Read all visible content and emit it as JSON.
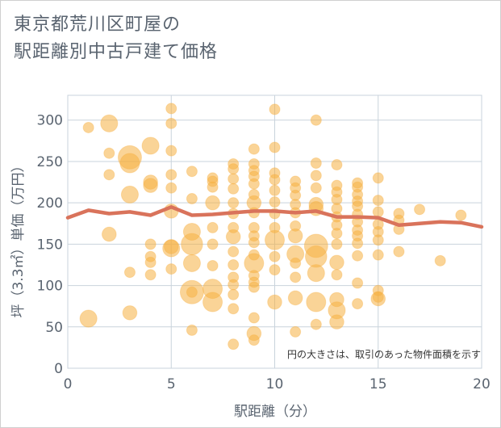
{
  "chart_data": {
    "type": "scatter",
    "title": "東京都荒川区町屋の\n駅距離別中古戸建て価格",
    "xlabel": "駅距離（分）",
    "ylabel": "坪（3.3㎡）単価（万円）",
    "xlim": [
      0,
      20
    ],
    "ylim": [
      0,
      330
    ],
    "x_ticks": [
      0,
      5,
      10,
      15,
      20
    ],
    "y_ticks": [
      0,
      50,
      100,
      150,
      200,
      250,
      300
    ],
    "grid": true,
    "note": "円の大きさは、取引のあった物件面積を示す",
    "colors": {
      "bubble": "#f5b041",
      "line": "#d9735b",
      "grid": "#c9d3dc"
    },
    "points": [
      {
        "x": 1,
        "y": 291,
        "s": 1
      },
      {
        "x": 1,
        "y": 60,
        "s": 3
      },
      {
        "x": 2,
        "y": 296,
        "s": 3
      },
      {
        "x": 2,
        "y": 260,
        "s": 1
      },
      {
        "x": 2,
        "y": 234,
        "s": 1
      },
      {
        "x": 2,
        "y": 162,
        "s": 2
      },
      {
        "x": 3,
        "y": 255,
        "s": 6
      },
      {
        "x": 3,
        "y": 248,
        "s": 4
      },
      {
        "x": 3,
        "y": 210,
        "s": 3
      },
      {
        "x": 3,
        "y": 116,
        "s": 1
      },
      {
        "x": 3,
        "y": 67,
        "s": 2
      },
      {
        "x": 4,
        "y": 269,
        "s": 3
      },
      {
        "x": 4,
        "y": 225,
        "s": 2
      },
      {
        "x": 4,
        "y": 221,
        "s": 2
      },
      {
        "x": 4,
        "y": 150,
        "s": 1
      },
      {
        "x": 4,
        "y": 135,
        "s": 1
      },
      {
        "x": 4,
        "y": 128,
        "s": 1
      },
      {
        "x": 4,
        "y": 113,
        "s": 1
      },
      {
        "x": 5,
        "y": 314,
        "s": 1
      },
      {
        "x": 5,
        "y": 296,
        "s": 1
      },
      {
        "x": 5,
        "y": 263,
        "s": 1
      },
      {
        "x": 5,
        "y": 234,
        "s": 1
      },
      {
        "x": 5,
        "y": 218,
        "s": 1
      },
      {
        "x": 5,
        "y": 190,
        "s": 2
      },
      {
        "x": 5,
        "y": 147,
        "s": 2
      },
      {
        "x": 5,
        "y": 145,
        "s": 3
      },
      {
        "x": 5,
        "y": 120,
        "s": 1
      },
      {
        "x": 6,
        "y": 238,
        "s": 1
      },
      {
        "x": 6,
        "y": 205,
        "s": 1
      },
      {
        "x": 6,
        "y": 165,
        "s": 3
      },
      {
        "x": 6,
        "y": 150,
        "s": 5
      },
      {
        "x": 6,
        "y": 127,
        "s": 3
      },
      {
        "x": 6,
        "y": 92,
        "s": 6
      },
      {
        "x": 6,
        "y": 92,
        "s": 1
      },
      {
        "x": 6,
        "y": 46,
        "s": 1
      },
      {
        "x": 7,
        "y": 230,
        "s": 1
      },
      {
        "x": 7,
        "y": 226,
        "s": 1
      },
      {
        "x": 7,
        "y": 219,
        "s": 1
      },
      {
        "x": 7,
        "y": 200,
        "s": 2
      },
      {
        "x": 7,
        "y": 170,
        "s": 1
      },
      {
        "x": 7,
        "y": 150,
        "s": 1
      },
      {
        "x": 7,
        "y": 124,
        "s": 1
      },
      {
        "x": 7,
        "y": 96,
        "s": 4
      },
      {
        "x": 7,
        "y": 80,
        "s": 4
      },
      {
        "x": 8,
        "y": 247,
        "s": 1
      },
      {
        "x": 8,
        "y": 241,
        "s": 1
      },
      {
        "x": 8,
        "y": 229,
        "s": 1
      },
      {
        "x": 8,
        "y": 217,
        "s": 1
      },
      {
        "x": 8,
        "y": 200,
        "s": 1
      },
      {
        "x": 8,
        "y": 187,
        "s": 1
      },
      {
        "x": 8,
        "y": 170,
        "s": 1
      },
      {
        "x": 8,
        "y": 159,
        "s": 2
      },
      {
        "x": 8,
        "y": 141,
        "s": 1
      },
      {
        "x": 8,
        "y": 125,
        "s": 1
      },
      {
        "x": 8,
        "y": 110,
        "s": 1
      },
      {
        "x": 8,
        "y": 101,
        "s": 1
      },
      {
        "x": 8,
        "y": 89,
        "s": 1
      },
      {
        "x": 8,
        "y": 72,
        "s": 1
      },
      {
        "x": 8,
        "y": 29,
        "s": 1
      },
      {
        "x": 9,
        "y": 265,
        "s": 1
      },
      {
        "x": 9,
        "y": 247,
        "s": 1
      },
      {
        "x": 9,
        "y": 239,
        "s": 1
      },
      {
        "x": 9,
        "y": 232,
        "s": 1
      },
      {
        "x": 9,
        "y": 223,
        "s": 1
      },
      {
        "x": 9,
        "y": 210,
        "s": 1
      },
      {
        "x": 9,
        "y": 200,
        "s": 2
      },
      {
        "x": 9,
        "y": 188,
        "s": 1
      },
      {
        "x": 9,
        "y": 170,
        "s": 1
      },
      {
        "x": 9,
        "y": 160,
        "s": 1
      },
      {
        "x": 9,
        "y": 152,
        "s": 1
      },
      {
        "x": 9,
        "y": 137,
        "s": 1
      },
      {
        "x": 9,
        "y": 127,
        "s": 4
      },
      {
        "x": 9,
        "y": 112,
        "s": 1
      },
      {
        "x": 9,
        "y": 104,
        "s": 1
      },
      {
        "x": 9,
        "y": 98,
        "s": 1
      },
      {
        "x": 9,
        "y": 61,
        "s": 1
      },
      {
        "x": 9,
        "y": 42,
        "s": 2
      },
      {
        "x": 9,
        "y": 34,
        "s": 1
      },
      {
        "x": 10,
        "y": 313,
        "s": 1
      },
      {
        "x": 10,
        "y": 267,
        "s": 1
      },
      {
        "x": 10,
        "y": 236,
        "s": 1
      },
      {
        "x": 10,
        "y": 228,
        "s": 1
      },
      {
        "x": 10,
        "y": 215,
        "s": 1
      },
      {
        "x": 10,
        "y": 201,
        "s": 1
      },
      {
        "x": 10,
        "y": 187,
        "s": 1
      },
      {
        "x": 10,
        "y": 170,
        "s": 1
      },
      {
        "x": 10,
        "y": 155,
        "s": 4
      },
      {
        "x": 10,
        "y": 135,
        "s": 1
      },
      {
        "x": 10,
        "y": 119,
        "s": 1
      },
      {
        "x": 10,
        "y": 80,
        "s": 2
      },
      {
        "x": 11,
        "y": 226,
        "s": 1
      },
      {
        "x": 11,
        "y": 218,
        "s": 1
      },
      {
        "x": 11,
        "y": 209,
        "s": 1
      },
      {
        "x": 11,
        "y": 198,
        "s": 1
      },
      {
        "x": 11,
        "y": 188,
        "s": 1
      },
      {
        "x": 11,
        "y": 172,
        "s": 1
      },
      {
        "x": 11,
        "y": 160,
        "s": 2
      },
      {
        "x": 11,
        "y": 138,
        "s": 3
      },
      {
        "x": 11,
        "y": 127,
        "s": 1
      },
      {
        "x": 11,
        "y": 110,
        "s": 1
      },
      {
        "x": 11,
        "y": 85,
        "s": 2
      },
      {
        "x": 11,
        "y": 44,
        "s": 1
      },
      {
        "x": 12,
        "y": 300,
        "s": 1
      },
      {
        "x": 12,
        "y": 248,
        "s": 1
      },
      {
        "x": 12,
        "y": 233,
        "s": 1
      },
      {
        "x": 12,
        "y": 218,
        "s": 1
      },
      {
        "x": 12,
        "y": 198,
        "s": 2
      },
      {
        "x": 12,
        "y": 193,
        "s": 2
      },
      {
        "x": 12,
        "y": 148,
        "s": 6
      },
      {
        "x": 12,
        "y": 135,
        "s": 5
      },
      {
        "x": 12,
        "y": 115,
        "s": 3
      },
      {
        "x": 12,
        "y": 80,
        "s": 4
      },
      {
        "x": 12,
        "y": 53,
        "s": 1
      },
      {
        "x": 13,
        "y": 246,
        "s": 1
      },
      {
        "x": 13,
        "y": 221,
        "s": 1
      },
      {
        "x": 13,
        "y": 213,
        "s": 1
      },
      {
        "x": 13,
        "y": 204,
        "s": 1
      },
      {
        "x": 13,
        "y": 193,
        "s": 1
      },
      {
        "x": 13,
        "y": 183,
        "s": 1
      },
      {
        "x": 13,
        "y": 173,
        "s": 1
      },
      {
        "x": 13,
        "y": 163,
        "s": 1
      },
      {
        "x": 13,
        "y": 150,
        "s": 1
      },
      {
        "x": 13,
        "y": 128,
        "s": 2
      },
      {
        "x": 13,
        "y": 113,
        "s": 1
      },
      {
        "x": 13,
        "y": 83,
        "s": 2
      },
      {
        "x": 13,
        "y": 70,
        "s": 3
      },
      {
        "x": 13,
        "y": 56,
        "s": 2
      },
      {
        "x": 14,
        "y": 224,
        "s": 1
      },
      {
        "x": 14,
        "y": 219,
        "s": 1
      },
      {
        "x": 14,
        "y": 210,
        "s": 1
      },
      {
        "x": 14,
        "y": 202,
        "s": 1
      },
      {
        "x": 14,
        "y": 196,
        "s": 1
      },
      {
        "x": 14,
        "y": 186,
        "s": 1
      },
      {
        "x": 14,
        "y": 177,
        "s": 1
      },
      {
        "x": 14,
        "y": 167,
        "s": 1
      },
      {
        "x": 14,
        "y": 160,
        "s": 1
      },
      {
        "x": 14,
        "y": 151,
        "s": 1
      },
      {
        "x": 14,
        "y": 136,
        "s": 1
      },
      {
        "x": 14,
        "y": 103,
        "s": 1
      },
      {
        "x": 14,
        "y": 78,
        "s": 1
      },
      {
        "x": 15,
        "y": 230,
        "s": 1
      },
      {
        "x": 15,
        "y": 203,
        "s": 1
      },
      {
        "x": 15,
        "y": 189,
        "s": 1
      },
      {
        "x": 15,
        "y": 174,
        "s": 1
      },
      {
        "x": 15,
        "y": 165,
        "s": 1
      },
      {
        "x": 15,
        "y": 155,
        "s": 1
      },
      {
        "x": 15,
        "y": 137,
        "s": 1
      },
      {
        "x": 15,
        "y": 94,
        "s": 1
      },
      {
        "x": 15,
        "y": 86,
        "s": 1
      },
      {
        "x": 15,
        "y": 84,
        "s": 2
      },
      {
        "x": 16,
        "y": 187,
        "s": 1
      },
      {
        "x": 16,
        "y": 179,
        "s": 1
      },
      {
        "x": 16,
        "y": 168,
        "s": 1
      },
      {
        "x": 16,
        "y": 141,
        "s": 1
      },
      {
        "x": 17,
        "y": 192,
        "s": 1
      },
      {
        "x": 18,
        "y": 130,
        "s": 1
      },
      {
        "x": 19,
        "y": 185,
        "s": 1
      }
    ],
    "trend": [
      {
        "x": 0,
        "y": 182
      },
      {
        "x": 1,
        "y": 191
      },
      {
        "x": 2,
        "y": 187
      },
      {
        "x": 3,
        "y": 189
      },
      {
        "x": 4,
        "y": 185
      },
      {
        "x": 5,
        "y": 195
      },
      {
        "x": 6,
        "y": 185
      },
      {
        "x": 7,
        "y": 186
      },
      {
        "x": 8,
        "y": 188
      },
      {
        "x": 9,
        "y": 190
      },
      {
        "x": 10,
        "y": 190
      },
      {
        "x": 11,
        "y": 188
      },
      {
        "x": 12,
        "y": 190
      },
      {
        "x": 13,
        "y": 183
      },
      {
        "x": 14,
        "y": 183
      },
      {
        "x": 15,
        "y": 182
      },
      {
        "x": 16,
        "y": 173
      },
      {
        "x": 17,
        "y": 175
      },
      {
        "x": 18,
        "y": 177
      },
      {
        "x": 19,
        "y": 176
      },
      {
        "x": 20,
        "y": 171
      }
    ]
  }
}
